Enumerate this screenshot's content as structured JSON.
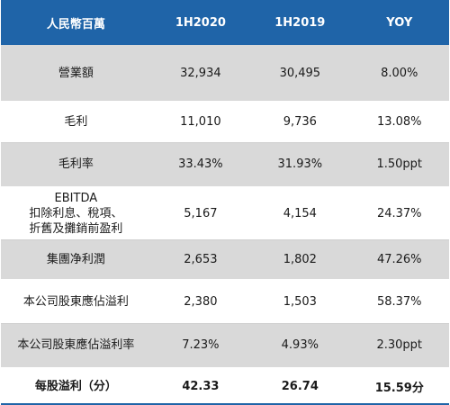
{
  "table": {
    "headers": [
      "人民幣百萬",
      "1H2020",
      "1H2019",
      "YOY"
    ],
    "rows": [
      {
        "metric_lines": [
          "營業額"
        ],
        "h2020": "32,934",
        "h2019": "30,495",
        "yoy": "8.00%"
      },
      {
        "metric_lines": [
          "毛利"
        ],
        "h2020": "11,010",
        "h2019": "9,736",
        "yoy": "13.08%"
      },
      {
        "metric_lines": [
          "毛利率"
        ],
        "h2020": "33.43%",
        "h2019": "31.93%",
        "yoy": "1.50ppt"
      },
      {
        "metric_lines": [
          "EBITDA",
          "扣除利息、稅項、",
          "折舊及攤銷前盈利"
        ],
        "h2020": "5,167",
        "h2019": "4,154",
        "yoy": "24.37%"
      },
      {
        "metric_lines": [
          "集團净利潤"
        ],
        "h2020": "2,653",
        "h2019": "1,802",
        "yoy": "47.26%"
      },
      {
        "metric_lines": [
          "本公司股東應佔溢利"
        ],
        "h2020": "2,380",
        "h2019": "1,503",
        "yoy": "58.37%"
      },
      {
        "metric_lines": [
          "本公司股東應佔溢利率"
        ],
        "h2020": "7.23%",
        "h2019": "4.93%",
        "yoy": "2.30ppt"
      },
      {
        "metric_lines": [
          "每股溢利（分）"
        ],
        "h2020": "42.33",
        "h2019": "26.74",
        "yoy": "15.59分"
      }
    ]
  },
  "colors": {
    "header_bg": "#1f64a8",
    "shaded_row_bg": "#d9d9d9"
  }
}
